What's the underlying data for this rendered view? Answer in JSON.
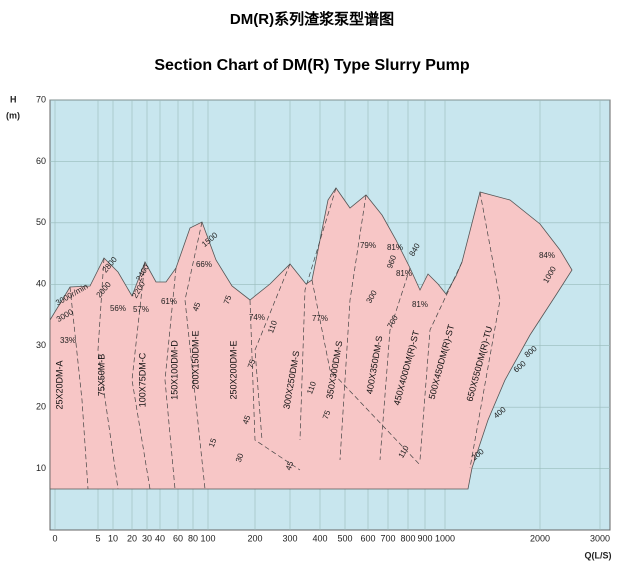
{
  "chart_data": {
    "type": "area",
    "title": "DM(R)系列渣浆泵型谱图",
    "subtitle": "Section Chart of DM(R) Type Slurry Pump",
    "ylabel": "H",
    "yunit": "(m)",
    "xlabel": "Q(L/S)",
    "ylim": [
      0,
      70
    ],
    "yticks": [
      10,
      20,
      30,
      40,
      50,
      60,
      70
    ],
    "xticks": [
      0,
      5,
      10,
      20,
      30,
      40,
      60,
      80,
      100,
      200,
      300,
      400,
      500,
      600,
      700,
      800,
      900,
      1000,
      2000,
      3000
    ],
    "grid": true,
    "fill_color": "#f7c6c6",
    "background": "#c8e6ee",
    "models": [
      "25X20DM-A",
      "75X50M-B",
      "100X75DM-C",
      "150X100DM-D",
      "200X150DM-E",
      "250X200DM-E",
      "300X250DM-S",
      "350X300DM-S",
      "400X350DM-S",
      "450X400DM(R)-ST",
      "500X450DM(R)-ST",
      "650X550DM(R)-TU"
    ],
    "annotations": [
      "33%",
      "56%",
      "57%",
      "61%",
      "66%",
      "74%",
      "77%",
      "79%",
      "81%",
      "81%",
      "81%",
      "84%",
      "3000r/min",
      "3000",
      "2800",
      "2000",
      "2400",
      "2200",
      "1500",
      "1000",
      "840",
      "960",
      "45",
      "75",
      "110",
      "75",
      "45",
      "30",
      "15",
      "110",
      "75",
      "45",
      "200",
      "400",
      "600",
      "800",
      "110",
      "300",
      "700"
    ]
  }
}
